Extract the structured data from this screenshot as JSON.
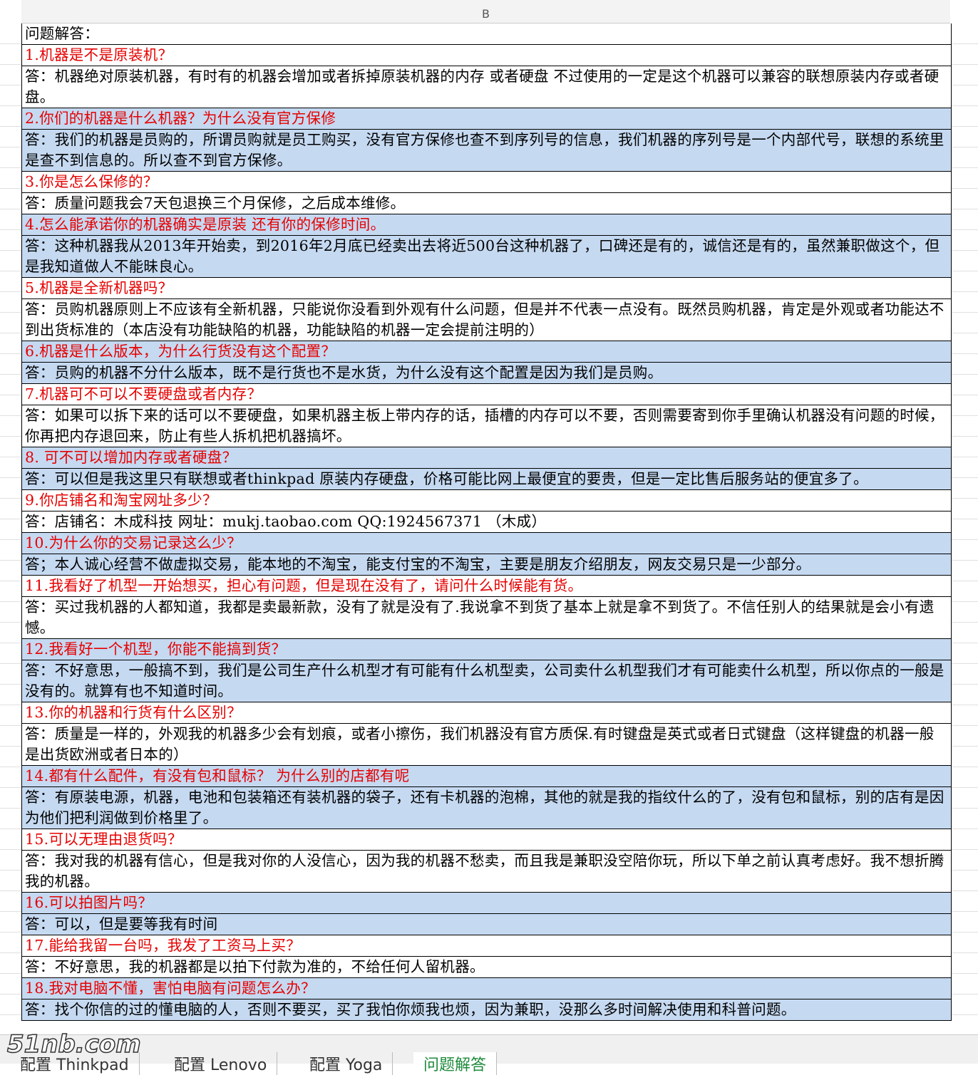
{
  "column_header": "B",
  "sheet": {
    "heading": "问题解答：",
    "items": [
      {
        "question": "1.机器是不是原装机？",
        "answer": "答：机器绝对原装机器，有时有的机器会增加或者拆掉原装机器的内存 或者硬盘 不过使用的一定是这个机器可以兼容的联想原装内存或者硬盘。"
      },
      {
        "question": "2.你们的机器是什么机器？为什么没有官方保修",
        "answer": "答：我们的机器是员购的，所谓员购就是员工购买，没有官方保修也查不到序列号的信息，我们机器的序列号是一个内部代号，联想的系统里是查不到信息的。所以查不到官方保修。"
      },
      {
        "question": "3.你是怎么保修的？",
        "answer": "答：质量问题我会7天包退换三个月保修，之后成本维修。"
      },
      {
        "question": "4.怎么能承诺你的机器确实是原装 还有你的保修时间。",
        "answer": "答：这种机器我从2013年开始卖，到2016年2月底已经卖出去将近500台这种机器了，口碑还是有的，诚信还是有的，虽然兼职做这个，但是我知道做人不能昧良心。"
      },
      {
        "question": "5.机器是全新机器吗？",
        "answer": "答：员购机器原则上不应该有全新机器，只能说你没看到外观有什么问题，但是并不代表一点没有。既然员购机器，肯定是外观或者功能达不到出货标准的（本店没有功能缺陷的机器，功能缺陷的机器一定会提前注明的）"
      },
      {
        "question": "6.机器是什么版本，为什么行货没有这个配置？",
        "answer": "答：员购的机器不分什么版本，既不是行货也不是水货，为什么没有这个配置是因为我们是员购。"
      },
      {
        "question": "7.机器可不可以不要硬盘或者内存？",
        "answer": "答：如果可以拆下来的话可以不要硬盘，如果机器主板上带内存的话，插槽的内存可以不要，否则需要寄到你手里确认机器没有问题的时候，你再把内存退回来，防止有些人拆机把机器搞坏。"
      },
      {
        "question": "8.  可不可以增加内存或者硬盘？",
        "answer": "答：可以但是我这里只有联想或者thinkpad 原装内存硬盘，价格可能比网上最便宜的要贵，但是一定比售后服务站的便宜多了。"
      },
      {
        "question": "9.你店铺名和淘宝网址多少？",
        "answer": "答：店铺名：木成科技  网址：mukj.taobao.com   QQ:1924567371 （木成）"
      },
      {
        "question": "10.为什么你的交易记录这么少？",
        "answer": "答；本人诚心经营不做虚拟交易，能本地的不淘宝，能支付宝的不淘宝，主要是朋友介绍朋友，网友交易只是一少部分。"
      },
      {
        "question": "11.我看好了机型一开始想买，担心有问题，但是现在没有了，请问什么时候能有货。",
        "answer": "答：买过我机器的人都知道，我都是卖最新款，没有了就是没有了.我说拿不到货了基本上就是拿不到货了。不信任别人的结果就是会小有遗憾。"
      },
      {
        "question": "12.我看好一个机型，你能不能搞到货？",
        "answer": "答：不好意思，一般搞不到，我们是公司生产什么机型才有可能有什么机型卖，公司卖什么机型我们才有可能卖什么机型，所以你点的一般是没有的。就算有也不知道时间。"
      },
      {
        "question": "13.你的机器和行货有什么区别？",
        "answer": "答：质量是一样的，外观我的机器多少会有划痕，或者小擦伤，我们机器没有官方质保.有时键盘是英式或者日式键盘（这样键盘的机器一般是出货欧洲或者日本的）"
      },
      {
        "question": "14.都有什么配件，有没有包和鼠标？ 为什么别的店都有呢",
        "answer": "答：有原装电源，机器，电池和包装箱还有装机器的袋子，还有卡机器的泡棉，其他的就是我的指纹什么的了，没有包和鼠标，别的店有是因为他们把利润做到价格里了。"
      },
      {
        "question": "15.可以无理由退货吗？",
        "answer": "答：我对我的机器有信心，但是我对你的人没信心，因为我的机器不愁卖，而且我是兼职没空陪你玩，所以下单之前认真考虑好。我不想折腾我的机器。"
      },
      {
        "question": "16.可以拍图片吗？",
        "answer": "答：可以，但是要等我有时间"
      },
      {
        "question": "17.能给我留一台吗，我发了工资马上买？",
        "answer": "答：不好意思，我的机器都是以拍下付款为准的，不给任何人留机器。"
      },
      {
        "question": "18.我对电脑不懂，害怕电脑有问题怎么办？",
        "answer": "答：找个你信的过的懂电脑的人，否则不要买，买了我怕你烦我也烦，因为兼职，没那么多时间解决使用和科普问题。"
      }
    ]
  },
  "watermark": "51nb.com",
  "tabs": [
    "配置 Thinkpad",
    "配置 Lenovo",
    "配置 Yoga",
    "问题解答"
  ]
}
